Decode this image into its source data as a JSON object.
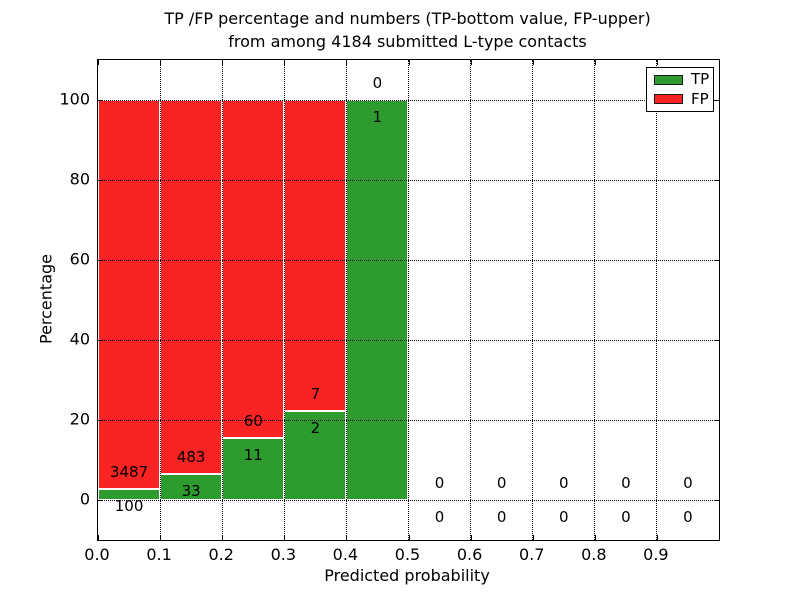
{
  "title": {
    "line1": "TP /FP percentage and numbers (TP-bottom value, FP-upper)",
    "line2": "from among 4184 submitted L-type contacts"
  },
  "axes": {
    "xlabel": "Predicted probability",
    "ylabel": "Percentage",
    "x_tick_labels": [
      "0.0",
      "0.1",
      "0.2",
      "0.3",
      "0.4",
      "0.5",
      "0.6",
      "0.7",
      "0.8",
      "0.9"
    ],
    "x_tick_values": [
      0.0,
      0.1,
      0.2,
      0.3,
      0.4,
      0.5,
      0.6,
      0.7,
      0.8,
      0.9
    ],
    "y_tick_labels": [
      "0",
      "20",
      "40",
      "60",
      "80",
      "100"
    ],
    "y_tick_values": [
      0,
      20,
      40,
      60,
      80,
      100
    ],
    "xlim": [
      0.0,
      1.0
    ],
    "ylim": [
      -10,
      110
    ]
  },
  "legend": {
    "items": [
      {
        "label": "TP",
        "color": "#2d9b2d"
      },
      {
        "label": "FP",
        "color": "#fa2323"
      }
    ],
    "position": "upper right"
  },
  "colors": {
    "tp": "#2d9b2d",
    "fp": "#fa2323",
    "grid": "#000000",
    "bar_edge": "#ffffff",
    "text": "#000000",
    "background": "#ffffff"
  },
  "chart_data": {
    "type": "bar",
    "stacked": true,
    "normalized_to_percent": true,
    "title": "TP /FP percentage and numbers (TP-bottom value, FP-upper) from among 4184 submitted L-type contacts",
    "xlabel": "Predicted probability",
    "ylabel": "Percentage",
    "total_submitted_contacts": 4184,
    "bin_edges": [
      0.0,
      0.1,
      0.2,
      0.3,
      0.4,
      0.5,
      0.6,
      0.7,
      0.8,
      0.9,
      1.0
    ],
    "categories": [
      "0.0-0.1",
      "0.1-0.2",
      "0.2-0.3",
      "0.3-0.4",
      "0.4-0.5",
      "0.5-0.6",
      "0.6-0.7",
      "0.7-0.8",
      "0.8-0.9",
      "0.9-1.0"
    ],
    "series": [
      {
        "name": "TP",
        "counts": [
          100,
          33,
          11,
          2,
          1,
          0,
          0,
          0,
          0,
          0
        ],
        "percent": [
          2.79,
          6.4,
          15.49,
          22.22,
          100,
          0,
          0,
          0,
          0,
          0
        ]
      },
      {
        "name": "FP",
        "counts": [
          3487,
          483,
          60,
          7,
          0,
          0,
          0,
          0,
          0,
          0
        ],
        "percent": [
          97.21,
          93.6,
          84.51,
          77.78,
          0,
          0,
          0,
          0,
          0,
          0
        ]
      }
    ],
    "label_note": "TP count shown at bottom of each bar, FP count shown above",
    "grid": true,
    "grid_style": "dotted",
    "legend_position": "upper right",
    "ylim": [
      -10,
      110
    ]
  }
}
